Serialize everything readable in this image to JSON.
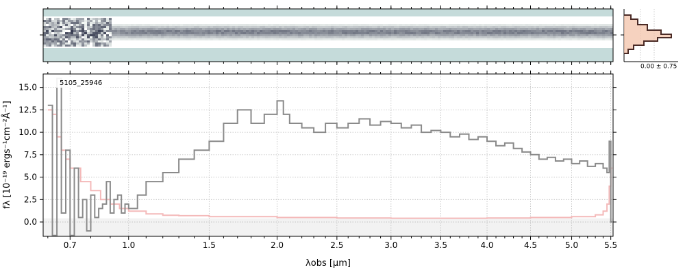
{
  "chart_data": [
    {
      "type": "heatmap",
      "panel": "2d-spectrum",
      "colormap": "bone_r",
      "mask_color": "#c5dbda",
      "trace_center_row": 0.5,
      "xlim": [
        0.58,
        5.53
      ]
    },
    {
      "type": "area",
      "panel": "cross-dispersion-profile",
      "annotation": "0.00 ± 0.75",
      "profile_color": "#4a2a25",
      "fill_color": "#f3c3aa"
    },
    {
      "type": "line",
      "panel": "1d-spectrum",
      "label": "5105_25946",
      "xlabel": "λobs [μm]",
      "ylabel": "fλ [10⁻¹⁹ ergs⁻¹cm⁻²Å⁻¹]",
      "xscale": "sqrt",
      "xlim": [
        0.58,
        5.53
      ],
      "ylim": [
        -1.6,
        16.5
      ],
      "xticks": [
        0.7,
        1.0,
        1.5,
        2.0,
        2.5,
        3.0,
        3.5,
        4.0,
        4.5,
        5.0,
        5.5
      ],
      "xtick_labels": [
        "0.7",
        "1.0",
        "1.5",
        "2.0",
        "2.5",
        "3.0",
        "3.5",
        "4.0",
        "4.5",
        "5.0",
        "5.5"
      ],
      "yticks": [
        0.0,
        2.5,
        5.0,
        7.5,
        10.0,
        12.5,
        15.0
      ],
      "ytick_labels": [
        "0.0",
        "2.5",
        "5.0",
        "7.5",
        "10.0",
        "12.5",
        "15.0"
      ],
      "grid": true,
      "series": [
        {
          "role": "flux",
          "color": "#8a8a8a",
          "style": "steps",
          "x": [
            0.6,
            0.62,
            0.64,
            0.66,
            0.68,
            0.7,
            0.72,
            0.74,
            0.76,
            0.78,
            0.8,
            0.82,
            0.84,
            0.86,
            0.88,
            0.9,
            0.92,
            0.94,
            0.96,
            0.98,
            1.0,
            1.05,
            1.1,
            1.2,
            1.3,
            1.4,
            1.5,
            1.6,
            1.7,
            1.8,
            1.9,
            2.0,
            2.05,
            2.1,
            2.2,
            2.3,
            2.4,
            2.5,
            2.6,
            2.7,
            2.8,
            2.9,
            3.0,
            3.1,
            3.2,
            3.3,
            3.4,
            3.5,
            3.6,
            3.7,
            3.8,
            3.9,
            4.0,
            4.1,
            4.2,
            4.3,
            4.4,
            4.5,
            4.6,
            4.7,
            4.8,
            4.9,
            5.0,
            5.1,
            5.2,
            5.3,
            5.4,
            5.45,
            5.48,
            5.5
          ],
          "y": [
            13.0,
            -1.5,
            16.0,
            1.0,
            8.0,
            -1.5,
            6.0,
            0.5,
            2.5,
            -1.0,
            3.0,
            0.5,
            1.5,
            2.0,
            4.5,
            1.0,
            2.5,
            3.0,
            1.0,
            2.0,
            1.5,
            3.0,
            4.5,
            5.5,
            7.0,
            8.0,
            9.0,
            11.0,
            12.5,
            11.0,
            12.0,
            13.5,
            12.0,
            11.0,
            10.5,
            10.0,
            11.0,
            10.5,
            11.0,
            11.5,
            10.8,
            11.2,
            11.0,
            10.5,
            10.8,
            10.0,
            10.2,
            10.0,
            9.5,
            9.8,
            9.2,
            9.5,
            9.0,
            8.5,
            8.8,
            8.2,
            7.8,
            7.5,
            7.0,
            7.2,
            6.8,
            7.0,
            6.5,
            6.8,
            6.2,
            6.5,
            6.0,
            5.5,
            9.0,
            0.0
          ]
        },
        {
          "role": "error",
          "color": "#f4b9b9",
          "style": "steps",
          "x": [
            0.6,
            0.62,
            0.64,
            0.66,
            0.68,
            0.7,
            0.75,
            0.8,
            0.85,
            0.9,
            0.95,
            1.0,
            1.1,
            1.2,
            1.3,
            1.5,
            2.0,
            2.5,
            3.0,
            3.5,
            4.0,
            4.5,
            5.0,
            5.3,
            5.4,
            5.45,
            5.48,
            5.5
          ],
          "y": [
            12.5,
            12.0,
            9.5,
            8.0,
            7.0,
            6.0,
            4.5,
            3.5,
            2.5,
            2.0,
            1.5,
            1.2,
            0.9,
            0.75,
            0.7,
            0.6,
            0.5,
            0.45,
            0.42,
            0.42,
            0.45,
            0.5,
            0.6,
            0.8,
            1.2,
            2.0,
            4.0,
            6.0
          ]
        }
      ]
    }
  ]
}
